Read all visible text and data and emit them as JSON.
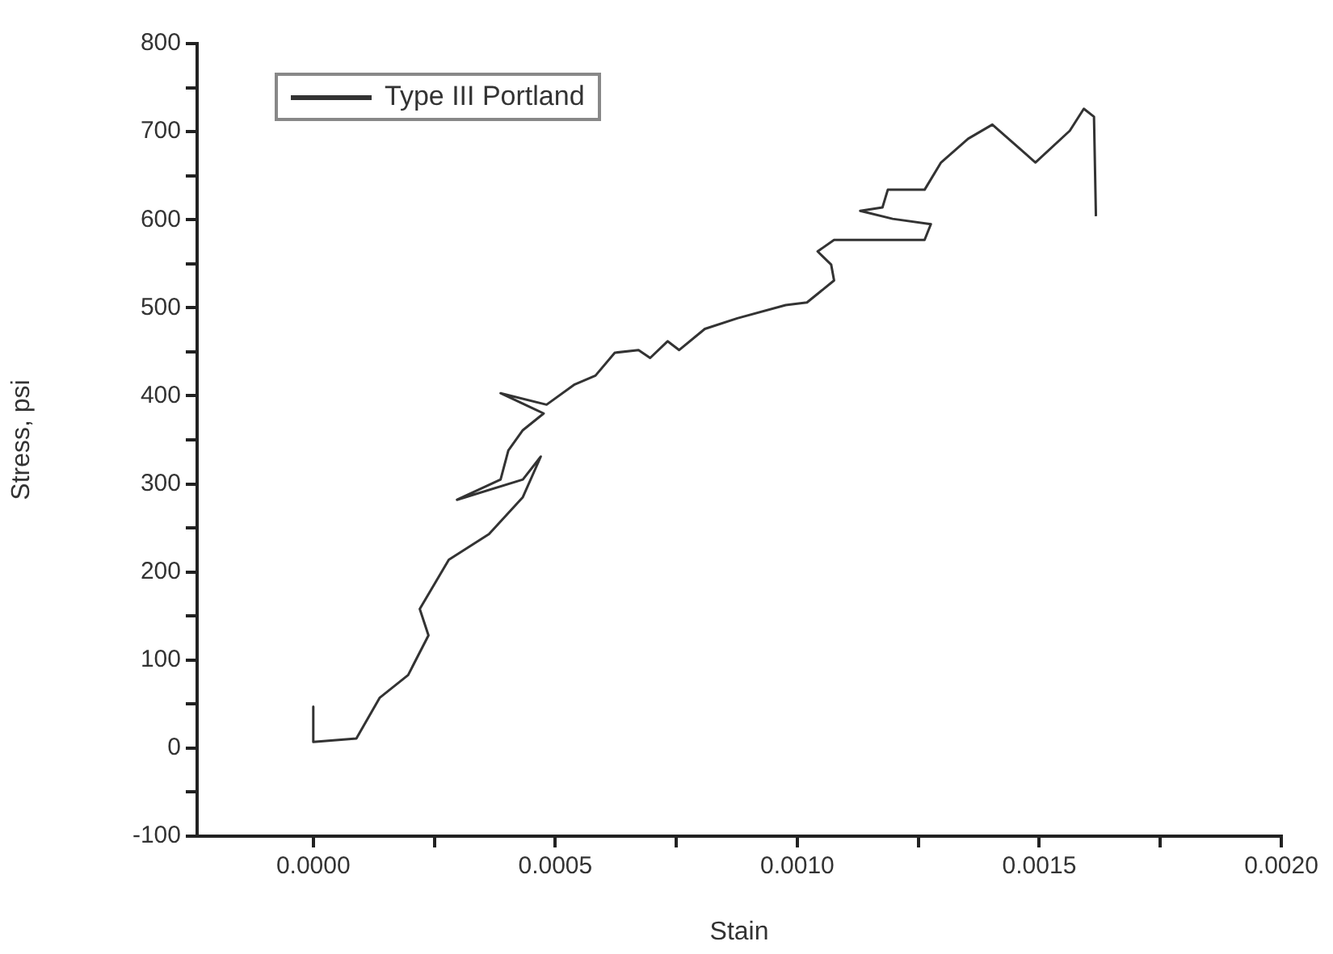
{
  "chart_data": {
    "type": "line",
    "xlabel": "Stain",
    "ylabel": "Stress, psi",
    "legend": "top left",
    "grid": false,
    "marker": "none",
    "line_style": "solid",
    "xlim": [
      -0.00024,
      0.002
    ],
    "ylim": [
      -100,
      800
    ],
    "xticks": [
      {
        "value": 0,
        "label": "0.0000"
      },
      {
        "value": 0.00025,
        "label": null
      },
      {
        "value": 0.0005,
        "label": "0.0005"
      },
      {
        "value": 0.00075,
        "label": null
      },
      {
        "value": 0.001,
        "label": "0.0010"
      },
      {
        "value": 0.00125,
        "label": null
      },
      {
        "value": 0.0015,
        "label": "0.0015"
      },
      {
        "value": 0.00175,
        "label": null
      },
      {
        "value": 0.002,
        "label": "0.0020"
      }
    ],
    "yticks": [
      -100,
      {
        "value": -50,
        "label": null
      },
      0,
      {
        "value": 50,
        "label": null
      },
      100,
      {
        "value": 150,
        "label": null
      },
      200,
      {
        "value": 250,
        "label": null
      },
      300,
      {
        "value": 350,
        "label": null
      },
      400,
      {
        "value": 450,
        "label": null
      },
      500,
      {
        "value": 550,
        "label": null
      },
      600,
      {
        "value": 650,
        "label": null
      },
      700,
      {
        "value": 750,
        "label": null
      },
      800
    ],
    "series": [
      {
        "name": "Type III Portland",
        "color": "#333333",
        "x": [
          0.0,
          0.0,
          8.9e-05,
          0.000137,
          0.000196,
          0.000238,
          0.00022,
          0.00028,
          0.000363,
          0.000433,
          0.00047,
          0.000433,
          0.000297,
          0.000387,
          0.000403,
          0.000433,
          0.000476,
          0.000387,
          0.000482,
          0.00054,
          0.000583,
          0.000623,
          0.000672,
          0.000696,
          0.000732,
          0.000756,
          0.000809,
          0.000876,
          0.000976,
          0.00102,
          0.001076,
          0.00107,
          0.001042,
          0.001076,
          0.001263,
          0.001276,
          0.001197,
          0.00113,
          0.001176,
          0.001187,
          0.001263,
          0.001297,
          0.001353,
          0.001403,
          0.001492,
          0.001563,
          0.001592,
          0.001613,
          0.001617
        ],
        "values": [
          47,
          7,
          11,
          57,
          83,
          128,
          158,
          214,
          243,
          285,
          331,
          305,
          282,
          305,
          338,
          361,
          380,
          403,
          390,
          413,
          423,
          449,
          452,
          443,
          462,
          452,
          476,
          488,
          503,
          506,
          531,
          549,
          564,
          577,
          577,
          595,
          601,
          610,
          614,
          634,
          634,
          665,
          692,
          708,
          665,
          701,
          726,
          717,
          604
        ]
      }
    ]
  }
}
